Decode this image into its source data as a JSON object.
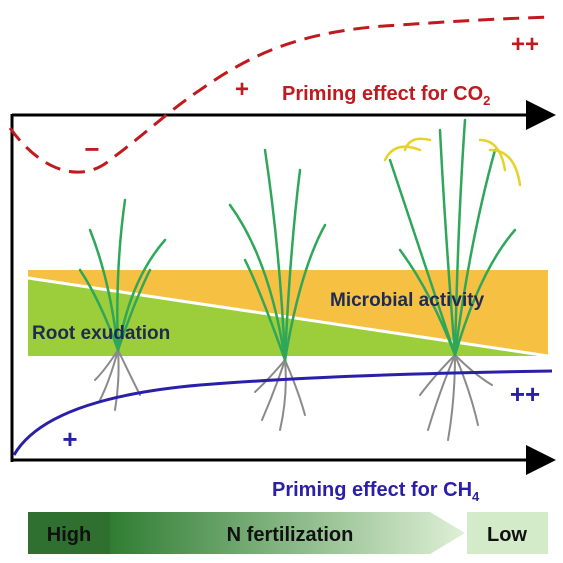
{
  "top_curve": {
    "label": {
      "text": "Priming effect for CO",
      "subscript": "2"
    },
    "marks": [
      "++",
      "+",
      "−"
    ]
  },
  "bands": {
    "upper": "Microbial activity",
    "lower": "Root exudation"
  },
  "bottom_curve": {
    "label": {
      "text": "Priming effect for CH",
      "subscript": "4"
    },
    "marks": [
      "++",
      "+"
    ]
  },
  "gradient_arrow": {
    "start": "High",
    "middle": "N fertilization",
    "end": "Low"
  }
}
